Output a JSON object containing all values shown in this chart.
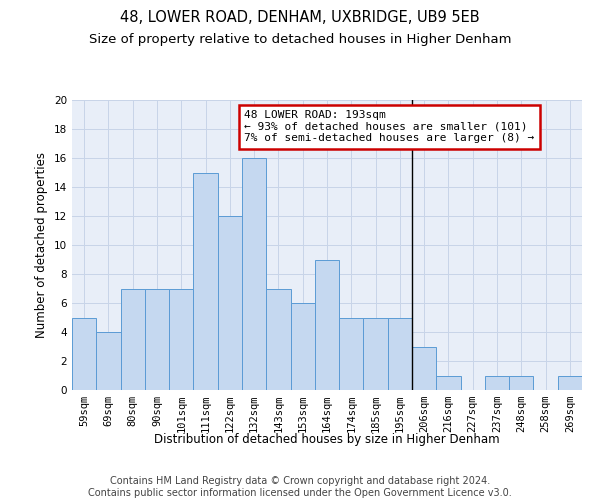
{
  "title": "48, LOWER ROAD, DENHAM, UXBRIDGE, UB9 5EB",
  "subtitle": "Size of property relative to detached houses in Higher Denham",
  "xlabel": "Distribution of detached houses by size in Higher Denham",
  "ylabel": "Number of detached properties",
  "categories": [
    "59sqm",
    "69sqm",
    "80sqm",
    "90sqm",
    "101sqm",
    "111sqm",
    "122sqm",
    "132sqm",
    "143sqm",
    "153sqm",
    "164sqm",
    "174sqm",
    "185sqm",
    "195sqm",
    "206sqm",
    "216sqm",
    "227sqm",
    "237sqm",
    "248sqm",
    "258sqm",
    "269sqm"
  ],
  "values": [
    5,
    4,
    7,
    7,
    7,
    15,
    12,
    16,
    7,
    6,
    9,
    5,
    5,
    5,
    3,
    1,
    0,
    1,
    1,
    0,
    1
  ],
  "bar_color": "#c5d8f0",
  "bar_edge_color": "#5b9bd5",
  "vline_x": 13.5,
  "vline_color": "#000000",
  "annotation_box_text": "48 LOWER ROAD: 193sqm\n← 93% of detached houses are smaller (101)\n7% of semi-detached houses are larger (8) →",
  "annotation_box_color": "#cc0000",
  "ylim": [
    0,
    20
  ],
  "yticks": [
    0,
    2,
    4,
    6,
    8,
    10,
    12,
    14,
    16,
    18,
    20
  ],
  "grid_color": "#c8d4e8",
  "bg_color": "#e8eef8",
  "footer_text": "Contains HM Land Registry data © Crown copyright and database right 2024.\nContains public sector information licensed under the Open Government Licence v3.0.",
  "title_fontsize": 10.5,
  "subtitle_fontsize": 9.5,
  "xlabel_fontsize": 8.5,
  "ylabel_fontsize": 8.5,
  "tick_fontsize": 7.5,
  "footer_fontsize": 7,
  "ann_fontsize": 8
}
